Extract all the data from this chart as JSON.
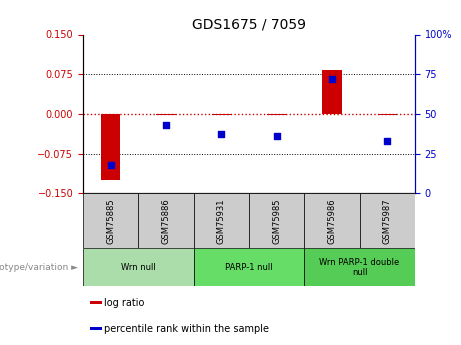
{
  "title": "GDS1675 / 7059",
  "samples": [
    "GSM75885",
    "GSM75886",
    "GSM75931",
    "GSM75985",
    "GSM75986",
    "GSM75987"
  ],
  "log_ratio": [
    -0.125,
    -0.002,
    -0.003,
    -0.002,
    0.082,
    -0.002
  ],
  "percentile_rank": [
    18,
    43,
    37,
    36,
    72,
    33
  ],
  "groups": [
    {
      "label": "Wrn null",
      "start": 0,
      "end": 1,
      "color": "#aaddaa"
    },
    {
      "label": "PARP-1 null",
      "start": 2,
      "end": 3,
      "color": "#66dd66"
    },
    {
      "label": "Wrn PARP-1 double\nnull",
      "start": 4,
      "end": 5,
      "color": "#55cc55"
    }
  ],
  "ylim_left": [
    -0.15,
    0.15
  ],
  "ylim_right": [
    0,
    100
  ],
  "yticks_left": [
    -0.15,
    -0.075,
    0,
    0.075,
    0.15
  ],
  "yticks_right": [
    0,
    25,
    50,
    75,
    100
  ],
  "bar_color": "#cc0000",
  "dot_color": "#0000cc",
  "left_tick_color": "#cc0000",
  "right_tick_color": "#0000cc",
  "sample_cell_color": "#cccccc",
  "legend_items": [
    {
      "label": "log ratio",
      "color": "#cc0000"
    },
    {
      "label": "percentile rank within the sample",
      "color": "#0000cc"
    }
  ],
  "group_label_text": "genotype/variation",
  "bar_width": 0.35,
  "dot_size": 25,
  "title_fontsize": 10
}
